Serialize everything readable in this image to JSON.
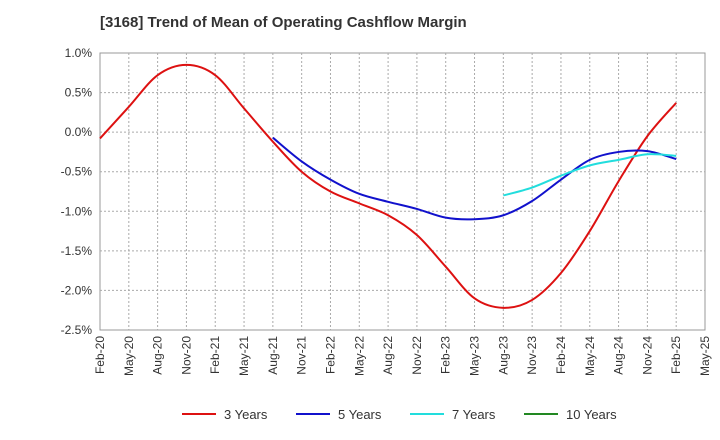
{
  "chart_data": {
    "type": "line",
    "title": "[3168]  Trend of Mean of Operating Cashflow Margin",
    "xlabel": "",
    "ylabel": "",
    "ylim": [
      -2.5,
      1.0
    ],
    "yticks": [
      1.0,
      0.5,
      0.0,
      -0.5,
      -1.0,
      -1.5,
      -2.0,
      -2.5
    ],
    "ytick_labels": [
      "1.0%",
      "0.5%",
      "0.0%",
      "-0.5%",
      "-1.0%",
      "-1.5%",
      "-2.0%",
      "-2.5%"
    ],
    "x_tick_labels": [
      "Feb-20",
      "May-20",
      "Aug-20",
      "Nov-20",
      "Feb-21",
      "May-21",
      "Aug-21",
      "Nov-21",
      "Feb-22",
      "May-22",
      "Aug-22",
      "Nov-22",
      "Feb-23",
      "May-23",
      "Aug-23",
      "Nov-23",
      "Feb-24",
      "May-24",
      "Aug-24",
      "Nov-24",
      "Feb-25",
      "May-25"
    ],
    "grid": true,
    "legend_position": "bottom",
    "series": [
      {
        "name": "3 Years",
        "color": "#dd1111",
        "points": [
          [
            0,
            -0.08
          ],
          [
            1,
            0.32
          ],
          [
            2,
            0.72
          ],
          [
            3,
            0.85
          ],
          [
            4,
            0.72
          ],
          [
            5,
            0.3
          ],
          [
            6,
            -0.12
          ],
          [
            7,
            -0.5
          ],
          [
            8,
            -0.75
          ],
          [
            9,
            -0.9
          ],
          [
            10,
            -1.05
          ],
          [
            11,
            -1.3
          ],
          [
            12,
            -1.7
          ],
          [
            13,
            -2.1
          ],
          [
            14,
            -2.22
          ],
          [
            15,
            -2.12
          ],
          [
            16,
            -1.78
          ],
          [
            17,
            -1.25
          ],
          [
            18,
            -0.62
          ],
          [
            19,
            -0.05
          ],
          [
            20,
            0.37
          ]
        ]
      },
      {
        "name": "5 Years",
        "color": "#1111cc",
        "points": [
          [
            6,
            -0.07
          ],
          [
            7,
            -0.37
          ],
          [
            8,
            -0.6
          ],
          [
            9,
            -0.78
          ],
          [
            10,
            -0.88
          ],
          [
            11,
            -0.97
          ],
          [
            12,
            -1.08
          ],
          [
            13,
            -1.1
          ],
          [
            14,
            -1.05
          ],
          [
            15,
            -0.87
          ],
          [
            16,
            -0.6
          ],
          [
            17,
            -0.35
          ],
          [
            18,
            -0.25
          ],
          [
            19,
            -0.24
          ],
          [
            20,
            -0.34
          ]
        ]
      },
      {
        "name": "7 Years",
        "color": "#22dddd",
        "points": [
          [
            14,
            -0.8
          ],
          [
            15,
            -0.7
          ],
          [
            16,
            -0.55
          ],
          [
            17,
            -0.42
          ],
          [
            18,
            -0.35
          ],
          [
            19,
            -0.28
          ],
          [
            20,
            -0.3
          ]
        ]
      },
      {
        "name": "10 Years",
        "color": "#228822",
        "points": []
      }
    ]
  }
}
